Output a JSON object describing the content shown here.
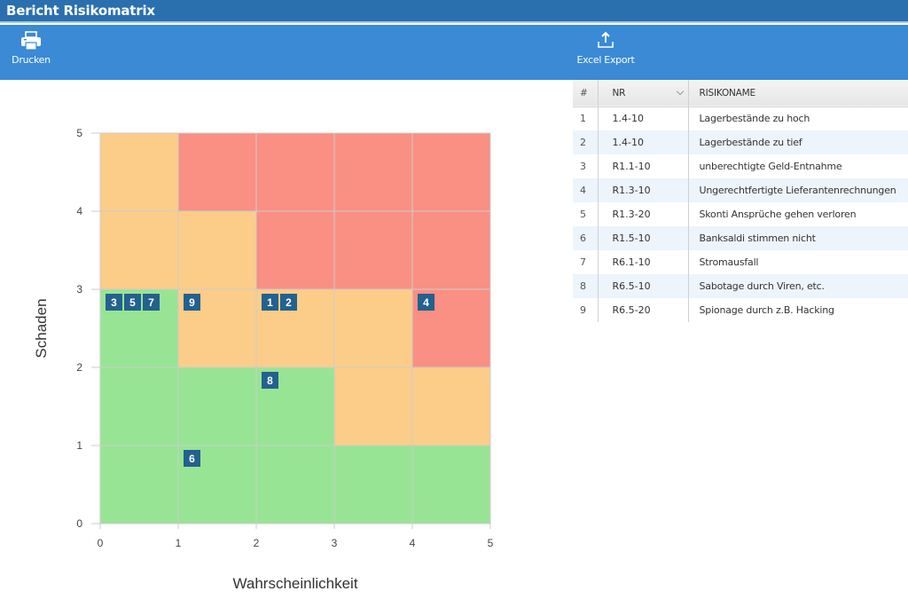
{
  "window": {
    "title": "Bericht Risikomatrix"
  },
  "toolbar": {
    "print": {
      "label": "Drucken",
      "icon": "printer-icon"
    },
    "excel_export": {
      "label": "Excel Export",
      "icon": "upload-icon"
    }
  },
  "colors": {
    "titlebar": "#2a6fae",
    "toolbar": "#3a8ad6",
    "low": "#98e495",
    "medium": "#fbcd88",
    "high": "#fa8f84",
    "marker": "#23618f"
  },
  "chart_data": {
    "type": "heatmap",
    "title": "",
    "xlabel": "Wahrscheinlichkeit",
    "ylabel": "Schaden",
    "xlim": [
      0,
      5
    ],
    "ylim": [
      0,
      5
    ],
    "xticks": [
      "0",
      "1",
      "2",
      "3",
      "4",
      "5"
    ],
    "yticks": [
      "0",
      "1",
      "2",
      "3",
      "4",
      "5"
    ],
    "grid": true,
    "cell_levels_note": "rows from Schaden 5 (top) to 1 (bottom), columns Wahrscheinlichkeit 1..5",
    "cells": [
      [
        "medium",
        "high",
        "high",
        "high",
        "high"
      ],
      [
        "medium",
        "medium",
        "high",
        "high",
        "high"
      ],
      [
        "low",
        "medium",
        "medium",
        "medium",
        "high"
      ],
      [
        "low",
        "low",
        "low",
        "medium",
        "medium"
      ],
      [
        "low",
        "low",
        "low",
        "low",
        "low"
      ]
    ],
    "markers": [
      {
        "id": "3",
        "x": 0,
        "y": 3,
        "slot": 0
      },
      {
        "id": "5",
        "x": 0,
        "y": 3,
        "slot": 1
      },
      {
        "id": "7",
        "x": 0,
        "y": 3,
        "slot": 2
      },
      {
        "id": "9",
        "x": 1,
        "y": 3,
        "slot": 0
      },
      {
        "id": "1",
        "x": 2,
        "y": 3,
        "slot": 0
      },
      {
        "id": "2",
        "x": 2,
        "y": 3,
        "slot": 1
      },
      {
        "id": "4",
        "x": 4,
        "y": 3,
        "slot": 0
      },
      {
        "id": "8",
        "x": 2,
        "y": 2,
        "slot": 0
      },
      {
        "id": "6",
        "x": 1,
        "y": 1,
        "slot": 0
      }
    ]
  },
  "table": {
    "headers": {
      "idx": "#",
      "nr": "NR",
      "name": "RISIKONAME"
    },
    "rows": [
      {
        "idx": "1",
        "nr": "1.4-10",
        "name": "Lagerbestände zu hoch"
      },
      {
        "idx": "2",
        "nr": "1.4-10",
        "name": "Lagerbestände zu tief"
      },
      {
        "idx": "3",
        "nr": "R1.1-10",
        "name": "unberechtigte Geld-Entnahme"
      },
      {
        "idx": "4",
        "nr": "R1.3-10",
        "name": "Ungerechtfertigte Lieferantenrechnungen"
      },
      {
        "idx": "5",
        "nr": "R1.3-20",
        "name": "Skonti Ansprüche gehen verloren"
      },
      {
        "idx": "6",
        "nr": "R1.5-10",
        "name": "Banksaldi stimmen nicht"
      },
      {
        "idx": "7",
        "nr": "R6.1-10",
        "name": "Stromausfall"
      },
      {
        "idx": "8",
        "nr": "R6.5-10",
        "name": "Sabotage durch Viren, etc."
      },
      {
        "idx": "9",
        "nr": "R6.5-20",
        "name": "Spionage durch z.B. Hacking"
      }
    ]
  }
}
